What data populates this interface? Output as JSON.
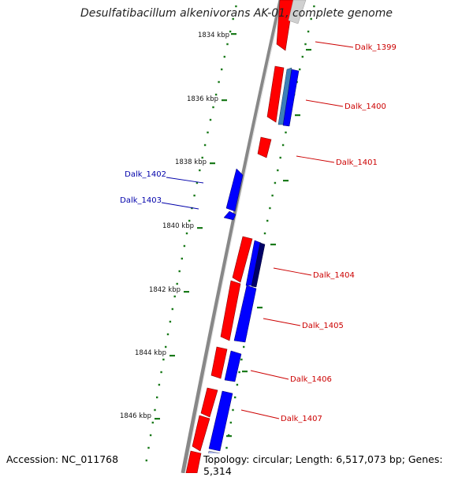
{
  "title": "Desulfatibacillum alkenivorans AK-01, complete genome",
  "footer": {
    "accession": "Accession: NC_011768",
    "summary": "Topology: circular; Length: 6,517,073 bp; Genes: 5,314"
  },
  "colors": {
    "forward": "#ff0000",
    "reverse": "#0000ff",
    "backbone": "#888888",
    "ticks": "#1a7a1a",
    "label_forward": "#cc0000",
    "label_reverse": "#0000aa"
  },
  "ruler": {
    "unit": "kbp",
    "major_ticks": [
      {
        "label": "1834 kbp"
      },
      {
        "label": "1836 kbp"
      },
      {
        "label": "1838 kbp"
      },
      {
        "label": "1840 kbp"
      },
      {
        "label": "1842 kbp"
      },
      {
        "label": "1844 kbp"
      },
      {
        "label": "1846 kbp"
      }
    ]
  },
  "gene_labels": [
    {
      "text": "Dalk_1399",
      "strand": "forward"
    },
    {
      "text": "Dalk_1400",
      "strand": "forward"
    },
    {
      "text": "Dalk_1401",
      "strand": "forward"
    },
    {
      "text": "Dalk_1402",
      "strand": "reverse"
    },
    {
      "text": "Dalk_1403",
      "strand": "reverse"
    },
    {
      "text": "Dalk_1404",
      "strand": "forward"
    },
    {
      "text": "Dalk_1405",
      "strand": "forward"
    },
    {
      "text": "Dalk_1406",
      "strand": "forward"
    },
    {
      "text": "Dalk_1407",
      "strand": "forward"
    }
  ]
}
